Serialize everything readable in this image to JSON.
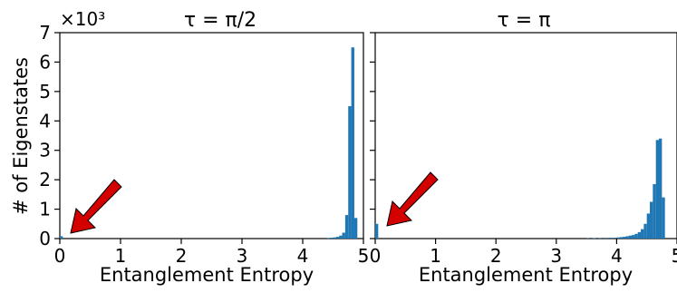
{
  "chart_data": [
    {
      "type": "bar",
      "title": "τ = π/2",
      "xlabel": "Entanglement Entropy",
      "ylabel": "# of Eigenstates",
      "y_multiplier": "×10³",
      "xlim": [
        0,
        5
      ],
      "ylim": [
        0,
        7000
      ],
      "xticks": [
        "0",
        "1",
        "2",
        "3",
        "4",
        "5"
      ],
      "yticks": [
        "0",
        "1",
        "2",
        "3",
        "4",
        "5",
        "6",
        "7"
      ],
      "bin_width": 0.05,
      "x": [
        0.0,
        4.4,
        4.45,
        4.5,
        4.55,
        4.6,
        4.65,
        4.7,
        4.75,
        4.8,
        4.85
      ],
      "values": [
        80,
        20,
        30,
        40,
        60,
        100,
        200,
        800,
        4500,
        6500,
        700
      ],
      "series_color": "#1f77b4",
      "annotation": "red-arrow-pointing-to-low-entropy-bin"
    },
    {
      "type": "bar",
      "title": "τ = π",
      "xlabel": "Entanglement Entropy",
      "xlim": [
        0,
        5
      ],
      "ylim": [
        0,
        7000
      ],
      "xticks": [
        "0",
        "1",
        "2",
        "3",
        "4",
        "5"
      ],
      "bin_width": 0.05,
      "x": [
        0.0,
        3.5,
        3.6,
        3.7,
        3.8,
        3.9,
        4.0,
        4.05,
        4.1,
        4.15,
        4.2,
        4.25,
        4.3,
        4.35,
        4.4,
        4.45,
        4.5,
        4.55,
        4.6,
        4.65,
        4.7,
        4.75
      ],
      "values": [
        500,
        10,
        15,
        20,
        25,
        30,
        40,
        50,
        60,
        80,
        100,
        120,
        160,
        220,
        320,
        500,
        850,
        1250,
        1850,
        3350,
        3400,
        1400
      ],
      "series_color": "#1f77b4",
      "annotation": "red-arrow-pointing-to-low-entropy-bin"
    }
  ]
}
